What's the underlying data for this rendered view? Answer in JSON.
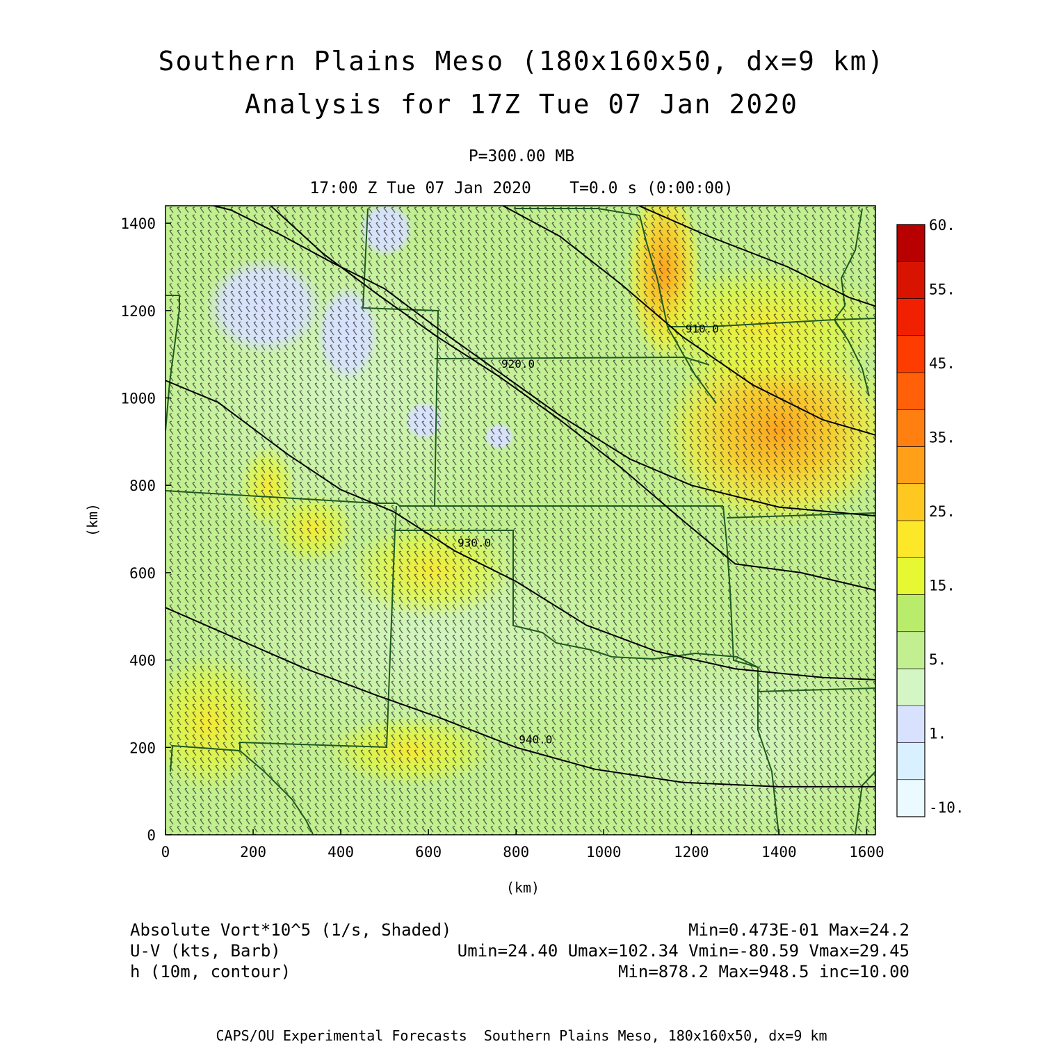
{
  "header": {
    "title_line1": "Southern Plains Meso (180x160x50, dx=9 km)",
    "title_line2": "Analysis for 17Z Tue 07 Jan 2020",
    "level": "P=300.00 MB",
    "time": "17:00 Z Tue 07 Jan 2020    T=0.0 s (0:00:00)"
  },
  "footer": {
    "field1_label": "Absolute Vort*10^5 (1/s, Shaded)",
    "field1_stats": "Min=0.473E-01 Max=24.2",
    "field2_label": "U-V (kts, Barb)",
    "field2_stats": "Umin=24.40 Umax=102.34 Vmin=-80.59 Vmax=29.45",
    "field3_label": "h (10m, contour)",
    "field3_stats": "Min=878.2 Max=948.5 inc=10.00",
    "credit": "CAPS/OU Experimental Forecasts  Southern Plains Meso, 180x160x50, dx=9 km"
  },
  "chart_data": {
    "type": "heatmap",
    "xlabel": "(km)",
    "ylabel": "(km)",
    "xlim": [
      0,
      1620
    ],
    "ylim": [
      0,
      1440
    ],
    "x_ticks": [
      0,
      200,
      400,
      600,
      800,
      1000,
      1200,
      1400,
      1600
    ],
    "y_ticks": [
      0,
      200,
      400,
      600,
      800,
      1000,
      1200,
      1400
    ],
    "colorbar": {
      "levels": [
        "-10.",
        "1.",
        "5.",
        "15.",
        "25.",
        "35.",
        "45.",
        "55.",
        "60."
      ],
      "colors": [
        "#eafaff",
        "#d8f0ff",
        "#d8e2ff",
        "#d4f6c4",
        "#c2f090",
        "#b8ec6a",
        "#e6f832",
        "#fce828",
        "#ffc820",
        "#ffa018",
        "#ff8010",
        "#ff6008",
        "#ff3c00",
        "#f02000",
        "#d81400",
        "#b80000"
      ]
    },
    "vorticity_range": [
      0.0473,
      24.2
    ],
    "wind_range_kts": {
      "umin": 24.4,
      "umax": 102.34,
      "vmin": -80.59,
      "vmax": 29.45
    },
    "height_range_10m": {
      "min": 878.2,
      "max": 948.5,
      "inc": 10.0
    },
    "contours": [
      {
        "label": "920.0",
        "points": [
          [
            70,
            1450
          ],
          [
            150,
            1430
          ],
          [
            260,
            1375
          ],
          [
            380,
            1310
          ],
          [
            500,
            1250
          ],
          [
            620,
            1160
          ],
          [
            760,
            1060
          ],
          [
            900,
            960
          ],
          [
            1060,
            860
          ],
          [
            1200,
            800
          ],
          [
            1400,
            750
          ],
          [
            1620,
            730
          ]
        ]
      },
      {
        "label": "930.0",
        "points": [
          [
            0,
            1040
          ],
          [
            120,
            990
          ],
          [
            200,
            930
          ],
          [
            280,
            870
          ],
          [
            400,
            790
          ],
          [
            520,
            740
          ],
          [
            660,
            650
          ],
          [
            800,
            580
          ],
          [
            960,
            480
          ],
          [
            1120,
            420
          ],
          [
            1300,
            380
          ],
          [
            1500,
            360
          ],
          [
            1620,
            355
          ]
        ]
      },
      {
        "label": "940.0",
        "points": [
          [
            0,
            520
          ],
          [
            160,
            450
          ],
          [
            320,
            380
          ],
          [
            480,
            320
          ],
          [
            620,
            270
          ],
          [
            800,
            200
          ],
          [
            980,
            150
          ],
          [
            1180,
            120
          ],
          [
            1400,
            110
          ],
          [
            1620,
            110
          ]
        ]
      },
      {
        "label": "910.0",
        "points": [
          [
            770,
            1440
          ],
          [
            900,
            1370
          ],
          [
            1040,
            1260
          ],
          [
            1180,
            1140
          ],
          [
            1340,
            1030
          ],
          [
            1500,
            950
          ],
          [
            1620,
            915
          ]
        ]
      },
      {
        "label": "",
        "points": [
          [
            1080,
            1440
          ],
          [
            1240,
            1370
          ],
          [
            1420,
            1300
          ],
          [
            1560,
            1230
          ],
          [
            1620,
            1210
          ]
        ]
      },
      {
        "label": "",
        "points": [
          [
            240,
            1440
          ],
          [
            360,
            1330
          ],
          [
            480,
            1240
          ],
          [
            620,
            1140
          ],
          [
            760,
            1050
          ],
          [
            900,
            950
          ],
          [
            1040,
            840
          ],
          [
            1180,
            720
          ],
          [
            1300,
            620
          ],
          [
            1450,
            600
          ],
          [
            1620,
            560
          ]
        ]
      }
    ]
  }
}
